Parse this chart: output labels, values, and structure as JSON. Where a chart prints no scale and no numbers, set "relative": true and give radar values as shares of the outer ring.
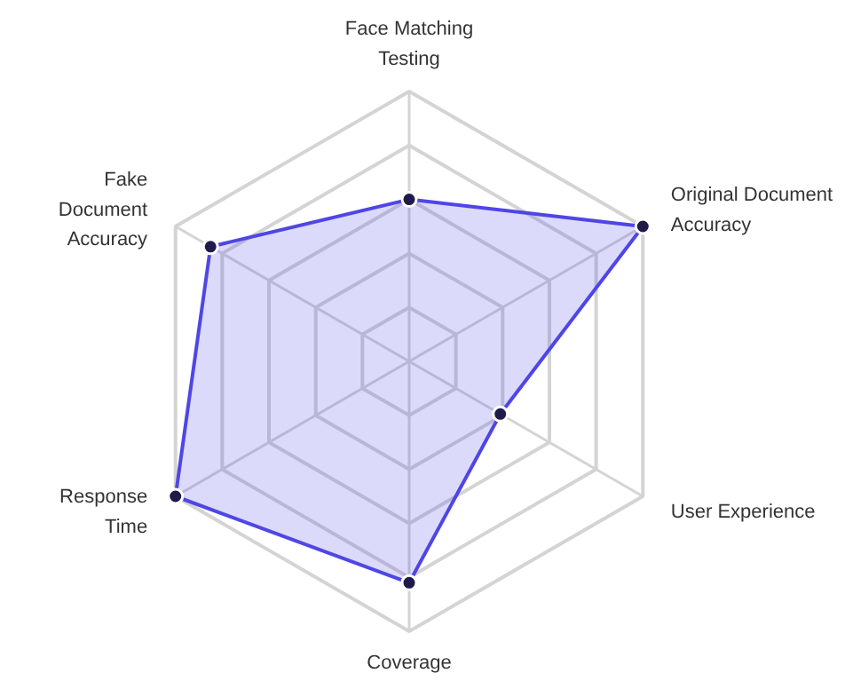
{
  "chart_data": {
    "type": "radar",
    "relative": true,
    "grid": true,
    "marker": "circle",
    "categories": [
      "Face Matching Testing",
      "Original Document Accuracy",
      "User Experience",
      "Coverage",
      "Response Time",
      "Fake Document Accuracy"
    ],
    "series": [
      {
        "color": "#4f46e5",
        "values": [
          0.6,
          1.0,
          0.39,
          0.82,
          1.0,
          0.85
        ]
      }
    ]
  }
}
